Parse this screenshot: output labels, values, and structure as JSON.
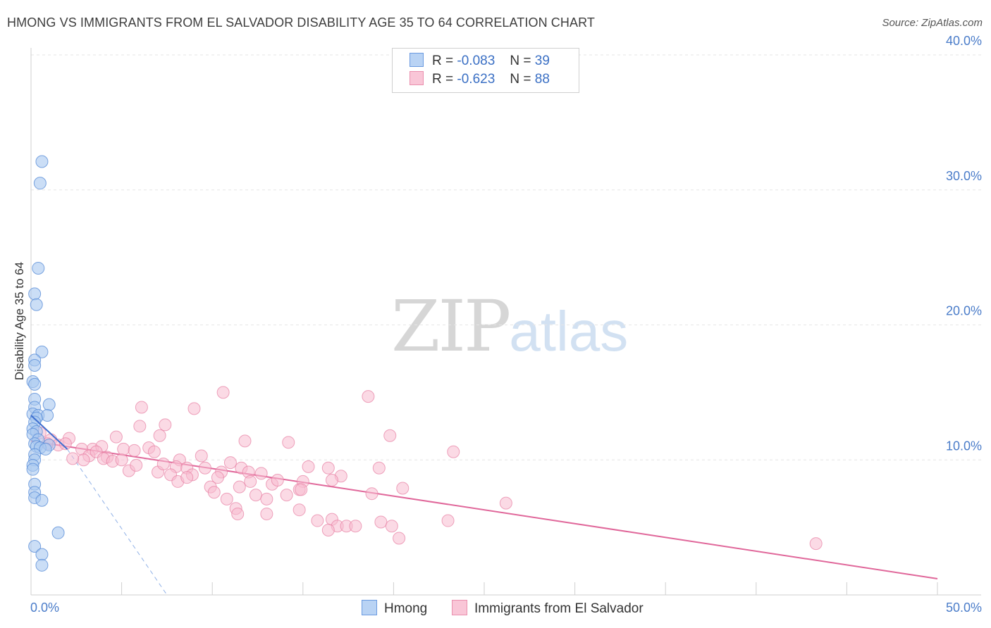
{
  "title": "HMONG VS IMMIGRANTS FROM EL SALVADOR DISABILITY AGE 35 TO 64 CORRELATION CHART",
  "source": "Source: ZipAtlas.com",
  "watermark": {
    "zip": "ZIP",
    "atlas": "atlas"
  },
  "legend": {
    "rows": [
      {
        "r_label": "R =",
        "r_value": "-0.083",
        "n_label": "N =",
        "n_value": "39"
      },
      {
        "r_label": "R =",
        "r_value": "-0.623",
        "n_label": "N =",
        "n_value": "88"
      }
    ]
  },
  "chart_data": {
    "type": "scatter",
    "title": "HMONG VS IMMIGRANTS FROM EL SALVADOR DISABILITY AGE 35 TO 64 CORRELATION CHART",
    "xlabel": "",
    "ylabel": "Disability Age 35 to 64",
    "xlim": [
      0,
      50
    ],
    "ylim": [
      0,
      40
    ],
    "x_tick_labels": [
      "0.0%",
      "50.0%"
    ],
    "y_tick_labels": [
      "10.0%",
      "20.0%",
      "30.0%",
      "40.0%"
    ],
    "y_ticks": [
      10,
      20,
      30,
      40
    ],
    "grid": true,
    "legend_placement": "bottom",
    "colors": {
      "hmong_fill": "#a9c8f0",
      "hmong_stroke": "#5b8fd8",
      "hmong_line": "#3e6fd0",
      "els_fill": "#f7bcd0",
      "els_stroke": "#e77fa2",
      "els_line": "#e0679a"
    },
    "series": [
      {
        "name": "Hmong",
        "points": [
          [
            0.6,
            32.1
          ],
          [
            0.5,
            30.5
          ],
          [
            0.4,
            24.2
          ],
          [
            0.2,
            22.3
          ],
          [
            0.3,
            21.5
          ],
          [
            0.6,
            18.0
          ],
          [
            0.2,
            17.4
          ],
          [
            0.2,
            17.0
          ],
          [
            0.1,
            15.8
          ],
          [
            0.2,
            15.6
          ],
          [
            0.2,
            14.5
          ],
          [
            1.0,
            14.1
          ],
          [
            0.2,
            13.9
          ],
          [
            0.1,
            13.4
          ],
          [
            0.4,
            13.3
          ],
          [
            0.9,
            13.3
          ],
          [
            0.3,
            13.1
          ],
          [
            0.2,
            12.8
          ],
          [
            0.1,
            12.3
          ],
          [
            0.3,
            12.1
          ],
          [
            0.1,
            11.9
          ],
          [
            0.4,
            11.5
          ],
          [
            0.2,
            11.2
          ],
          [
            1.0,
            11.1
          ],
          [
            0.3,
            11.0
          ],
          [
            0.5,
            10.9
          ],
          [
            0.8,
            10.8
          ],
          [
            0.2,
            10.4
          ],
          [
            0.2,
            10.0
          ],
          [
            0.1,
            9.6
          ],
          [
            0.1,
            9.3
          ],
          [
            0.2,
            8.2
          ],
          [
            0.2,
            7.6
          ],
          [
            0.2,
            7.2
          ],
          [
            0.6,
            7.0
          ],
          [
            1.5,
            4.6
          ],
          [
            0.2,
            3.6
          ],
          [
            0.6,
            3.0
          ],
          [
            0.6,
            2.2
          ]
        ],
        "trend": {
          "x": [
            0.0,
            2.0
          ],
          "y": [
            13.3,
            10.8
          ]
        },
        "trend_extension": {
          "x": [
            2.0,
            7.5
          ],
          "y": [
            10.8,
            0.0
          ]
        }
      },
      {
        "name": "Immigrants from El Salvador",
        "points": [
          [
            10.6,
            15.0
          ],
          [
            18.6,
            14.7
          ],
          [
            6.1,
            13.9
          ],
          [
            9.0,
            13.8
          ],
          [
            7.4,
            12.6
          ],
          [
            6.0,
            12.5
          ],
          [
            4.7,
            11.7
          ],
          [
            7.1,
            11.8
          ],
          [
            19.8,
            11.8
          ],
          [
            11.8,
            11.4
          ],
          [
            14.2,
            11.3
          ],
          [
            0.5,
            12.0
          ],
          [
            1.1,
            11.5
          ],
          [
            2.1,
            11.6
          ],
          [
            0.9,
            11.2
          ],
          [
            1.5,
            11.1
          ],
          [
            1.9,
            11.2
          ],
          [
            3.4,
            10.8
          ],
          [
            3.9,
            11.0
          ],
          [
            2.8,
            10.8
          ],
          [
            5.1,
            10.8
          ],
          [
            5.7,
            10.7
          ],
          [
            6.5,
            10.9
          ],
          [
            6.8,
            10.6
          ],
          [
            3.2,
            10.3
          ],
          [
            3.6,
            10.6
          ],
          [
            4.2,
            10.2
          ],
          [
            4.0,
            10.1
          ],
          [
            2.9,
            10.0
          ],
          [
            2.3,
            10.1
          ],
          [
            4.5,
            9.9
          ],
          [
            5.0,
            10.0
          ],
          [
            5.4,
            9.2
          ],
          [
            5.8,
            9.6
          ],
          [
            7.0,
            9.1
          ],
          [
            7.3,
            9.7
          ],
          [
            8.2,
            10.0
          ],
          [
            8.0,
            9.5
          ],
          [
            8.6,
            9.4
          ],
          [
            9.4,
            10.3
          ],
          [
            9.6,
            9.4
          ],
          [
            10.5,
            9.1
          ],
          [
            11.0,
            9.8
          ],
          [
            11.6,
            9.4
          ],
          [
            12.0,
            9.1
          ],
          [
            12.7,
            9.0
          ],
          [
            15.3,
            9.5
          ],
          [
            19.2,
            9.4
          ],
          [
            23.3,
            10.6
          ],
          [
            8.9,
            8.9
          ],
          [
            7.7,
            8.9
          ],
          [
            8.1,
            8.4
          ],
          [
            8.6,
            8.7
          ],
          [
            9.9,
            8.0
          ],
          [
            10.3,
            8.7
          ],
          [
            10.1,
            7.6
          ],
          [
            11.5,
            8.0
          ],
          [
            12.1,
            8.4
          ],
          [
            13.3,
            8.2
          ],
          [
            13.6,
            8.5
          ],
          [
            15.0,
            8.4
          ],
          [
            17.1,
            8.8
          ],
          [
            16.4,
            9.4
          ],
          [
            20.5,
            7.9
          ],
          [
            14.8,
            7.8
          ],
          [
            12.4,
            7.4
          ],
          [
            13.0,
            7.1
          ],
          [
            10.8,
            7.1
          ],
          [
            11.3,
            6.4
          ],
          [
            14.1,
            7.4
          ],
          [
            16.6,
            8.5
          ],
          [
            18.8,
            7.5
          ],
          [
            23.0,
            5.5
          ],
          [
            26.2,
            6.8
          ],
          [
            14.8,
            6.3
          ],
          [
            14.9,
            7.8
          ],
          [
            15.8,
            5.5
          ],
          [
            16.6,
            5.6
          ],
          [
            16.9,
            5.1
          ],
          [
            17.4,
            5.1
          ],
          [
            17.9,
            5.1
          ],
          [
            19.3,
            5.4
          ],
          [
            19.9,
            5.1
          ],
          [
            20.3,
            4.2
          ],
          [
            13.0,
            6.0
          ],
          [
            16.4,
            4.8
          ],
          [
            11.4,
            6.0
          ],
          [
            43.3,
            3.8
          ]
        ],
        "trend": {
          "x": [
            0.0,
            50.0
          ],
          "y": [
            11.4,
            1.2
          ]
        }
      }
    ]
  }
}
